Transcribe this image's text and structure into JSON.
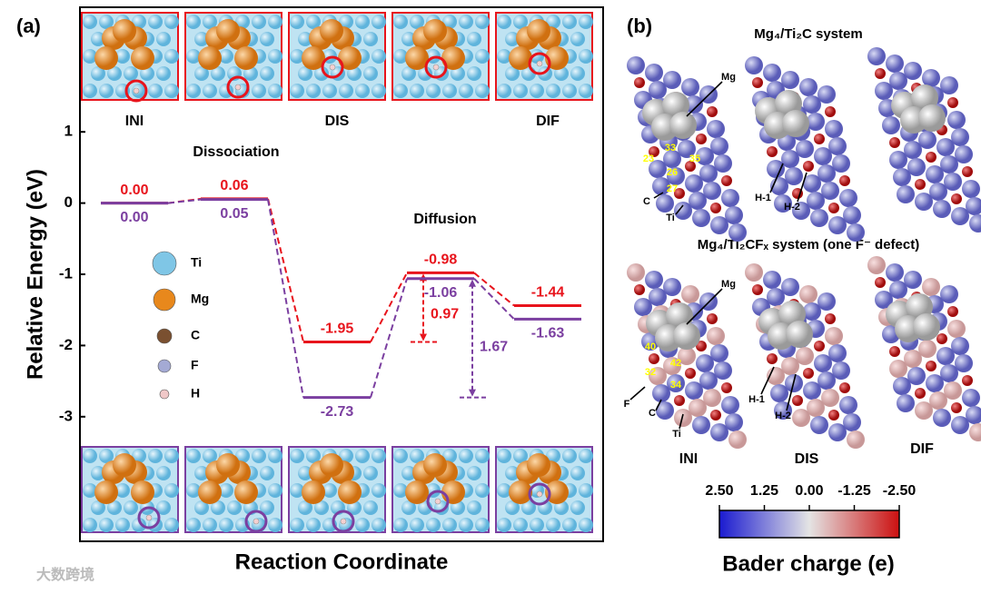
{
  "chart_data": {
    "type": "energy-profile",
    "panel_label": "(a)",
    "ylabel": "Relative Energy (eV)",
    "xlabel": "Reaction Coordinate",
    "categories": [
      "INI",
      null,
      "DIS",
      null,
      "DIF"
    ],
    "ylim": [
      -4.75,
      2.75
    ],
    "yticks": [
      1,
      0,
      -1,
      -2,
      -3
    ],
    "annotations": [
      "Dissociation",
      "Diffusion"
    ],
    "series": [
      {
        "name": "Mg4/Ti2C",
        "color": "#e8141c",
        "values": [
          0,
          0.06,
          -1.95,
          -0.98,
          -1.44
        ],
        "value_labels": [
          "0.00",
          "0.06",
          "-1.95",
          "-0.98",
          "-1.44"
        ],
        "barrier": 0.97
      },
      {
        "name": "Mg4/Ti2CFx",
        "color": "#7b3fa0",
        "values": [
          0,
          0.05,
          -2.73,
          -1.06,
          -1.63
        ],
        "value_labels": [
          "0.00",
          "0.05",
          "-2.73",
          "-1.06",
          "-1.63"
        ],
        "barrier": 1.67
      }
    ],
    "atoms": [
      {
        "name": "Ti",
        "color": "#7fc6e6"
      },
      {
        "name": "Mg",
        "color": "#e8881c"
      },
      {
        "name": "C",
        "color": "#7a5030"
      },
      {
        "name": "F",
        "color": "#a4aad4"
      },
      {
        "name": "H",
        "color": "#f0c8c8"
      }
    ]
  },
  "panel_b": {
    "panel_label": "(b)",
    "title_top": "Mg₄/Ti₂C system",
    "title_bottom": "Mg₄/Ti₂CFₓ system (one F⁻ defect)",
    "labels": [
      "Mg",
      "33",
      "23",
      "35",
      "26",
      "27",
      "C",
      "Ti",
      "H-1",
      "H-2",
      "Mg",
      "40",
      "42",
      "32",
      "34",
      "F",
      "C",
      "Ti",
      "H-1",
      "H-2"
    ],
    "states": [
      "INI",
      "DIS",
      "DIF"
    ],
    "colorbar": {
      "label": "Bader charge (e)",
      "lim": [
        2.5,
        -2.5
      ],
      "colors": [
        "#1a1ad0",
        "#e4e4e4",
        "#cc1010"
      ],
      "ticks": [
        {
          "value": 2.5,
          "label": "2.50"
        },
        {
          "value": 1.25,
          "label": "1.25"
        },
        {
          "value": 0,
          "label": "0.00"
        },
        {
          "value": -1.25,
          "label": "-1.25"
        },
        {
          "value": -2.5,
          "label": "-2.50"
        }
      ]
    }
  },
  "watermark": "大数跨境"
}
